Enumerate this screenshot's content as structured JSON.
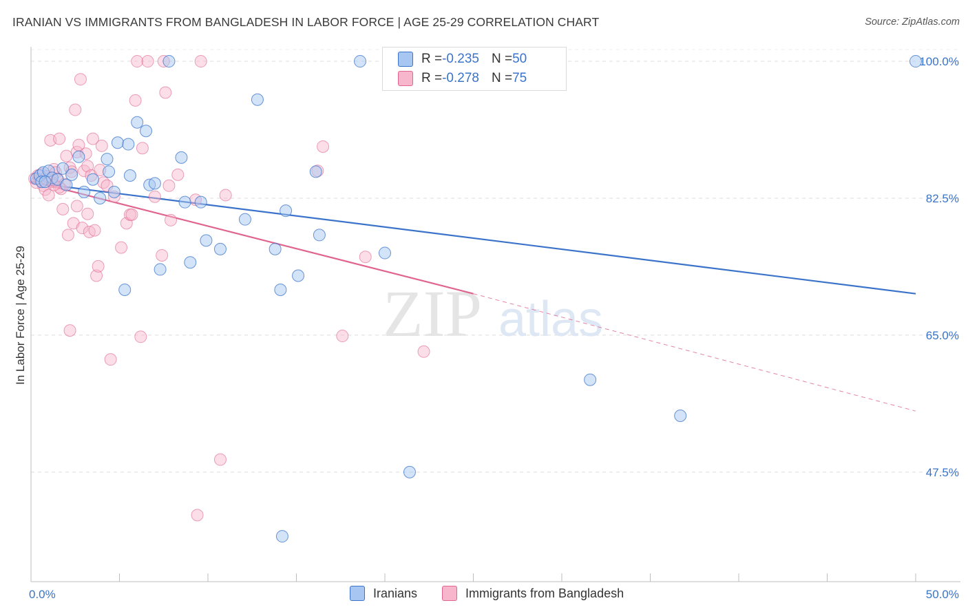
{
  "title": "IRANIAN VS IMMIGRANTS FROM BANGLADESH IN LABOR FORCE | AGE 25-29 CORRELATION CHART",
  "source": "Source: ZipAtlas.com",
  "watermark": {
    "zip": "ZIP",
    "atlas": "atlas"
  },
  "legend": {
    "series1": {
      "r_label": "R = ",
      "r_value": "-0.235",
      "n_label": "N = ",
      "n_value": "50",
      "color": "#a7c7f2"
    },
    "series2": {
      "r_label": "R = ",
      "r_value": "-0.278",
      "n_label": "N = ",
      "n_value": "75",
      "color": "#f7b6cb"
    }
  },
  "bottom_legend": {
    "series1": "Iranians",
    "series2": "Immigrants from Bangladesh"
  },
  "chart_data": {
    "type": "scatter",
    "title": "IRANIAN VS IMMIGRANTS FROM BANGLADESH IN LABOR FORCE | AGE 25-29 CORRELATION CHART",
    "xlabel": "",
    "ylabel": "In Labor Force | Age 25-29",
    "xlim": [
      0,
      50
    ],
    "ylim": [
      33.5,
      101.5
    ],
    "x_tick_labels": [
      "0.0%",
      "50.0%"
    ],
    "y_ticks": [
      47.5,
      65.0,
      82.5,
      100.0
    ],
    "y_tick_labels": [
      "47.5%",
      "65.0%",
      "82.5%",
      "100.0%"
    ],
    "grid": true,
    "colors": {
      "iranians": "#3a73c9",
      "iranians_fill": "#a7c7f2",
      "bangladesh": "#e0648e",
      "bangladesh_fill": "#f7b6cb",
      "tick": "#3a73c9"
    },
    "series": [
      {
        "name": "Iranians",
        "r": -0.235,
        "n": 50,
        "trend": {
          "x": [
            0,
            50
          ],
          "y": [
            84.5,
            70.3
          ]
        },
        "points": [
          [
            0.3,
            85.0
          ],
          [
            0.5,
            85.4
          ],
          [
            0.7,
            85.8
          ],
          [
            0.6,
            84.6
          ],
          [
            1.0,
            86.0
          ],
          [
            1.2,
            85.1
          ],
          [
            1.5,
            84.9
          ],
          [
            1.8,
            86.3
          ],
          [
            2.0,
            84.2
          ],
          [
            2.3,
            85.5
          ],
          [
            2.7,
            87.8
          ],
          [
            3.0,
            83.3
          ],
          [
            3.5,
            84.9
          ],
          [
            3.9,
            82.5
          ],
          [
            4.3,
            87.5
          ],
          [
            4.4,
            85.9
          ],
          [
            4.7,
            83.3
          ],
          [
            4.9,
            89.6
          ],
          [
            5.3,
            70.8
          ],
          [
            5.5,
            89.4
          ],
          [
            5.6,
            85.4
          ],
          [
            6.0,
            92.2
          ],
          [
            6.5,
            91.1
          ],
          [
            6.7,
            84.2
          ],
          [
            7.0,
            84.4
          ],
          [
            7.3,
            73.4
          ],
          [
            7.8,
            100.0
          ],
          [
            8.5,
            87.7
          ],
          [
            8.7,
            82.0
          ],
          [
            9.0,
            74.3
          ],
          [
            9.6,
            82.0
          ],
          [
            9.9,
            77.1
          ],
          [
            10.7,
            76.0
          ],
          [
            12.1,
            79.8
          ],
          [
            12.8,
            95.1
          ],
          [
            13.8,
            76.0
          ],
          [
            14.1,
            70.8
          ],
          [
            14.2,
            39.3
          ],
          [
            14.4,
            80.9
          ],
          [
            15.1,
            72.6
          ],
          [
            16.1,
            85.9
          ],
          [
            16.3,
            77.8
          ],
          [
            18.6,
            100.0
          ],
          [
            20.0,
            75.5
          ],
          [
            21.4,
            47.5
          ],
          [
            25.6,
            100.0
          ],
          [
            31.6,
            59.3
          ],
          [
            36.7,
            54.7
          ],
          [
            50.0,
            100.0
          ],
          [
            0.8,
            84.6
          ]
        ]
      },
      {
        "name": "Immigrants from Bangladesh",
        "r": -0.278,
        "n": 75,
        "trend": {
          "x": [
            0,
            25
          ],
          "y": [
            84.7,
            70.3
          ]
        },
        "trend_dashed": {
          "x": [
            25,
            50
          ],
          "y": [
            70.3,
            55.3
          ]
        },
        "points": [
          [
            0.2,
            85.0
          ],
          [
            0.3,
            84.5
          ],
          [
            0.4,
            85.4
          ],
          [
            0.5,
            84.9
          ],
          [
            0.6,
            85.6
          ],
          [
            0.7,
            84.1
          ],
          [
            0.8,
            83.6
          ],
          [
            0.9,
            84.9
          ],
          [
            1.0,
            82.9
          ],
          [
            1.1,
            89.9
          ],
          [
            1.2,
            84.6
          ],
          [
            1.3,
            86.2
          ],
          [
            1.4,
            85.8
          ],
          [
            1.5,
            85.0
          ],
          [
            1.6,
            90.1
          ],
          [
            1.7,
            83.7
          ],
          [
            1.8,
            81.1
          ],
          [
            1.9,
            84.3
          ],
          [
            2.0,
            87.9
          ],
          [
            2.1,
            77.8
          ],
          [
            2.2,
            86.4
          ],
          [
            2.3,
            85.9
          ],
          [
            2.4,
            79.3
          ],
          [
            2.5,
            93.8
          ],
          [
            2.6,
            88.4
          ],
          [
            2.7,
            89.3
          ],
          [
            2.8,
            97.7
          ],
          [
            2.9,
            78.7
          ],
          [
            3.0,
            86.0
          ],
          [
            3.1,
            88.2
          ],
          [
            3.2,
            86.6
          ],
          [
            3.3,
            78.2
          ],
          [
            3.4,
            85.4
          ],
          [
            3.5,
            90.1
          ],
          [
            3.6,
            78.4
          ],
          [
            3.7,
            72.6
          ],
          [
            3.8,
            73.8
          ],
          [
            3.9,
            86.1
          ],
          [
            4.0,
            89.2
          ],
          [
            4.1,
            84.5
          ],
          [
            4.3,
            84.1
          ],
          [
            4.5,
            61.9
          ],
          [
            4.7,
            82.7
          ],
          [
            5.1,
            76.2
          ],
          [
            5.4,
            79.3
          ],
          [
            5.6,
            80.4
          ],
          [
            5.7,
            80.4
          ],
          [
            5.9,
            95.0
          ],
          [
            6.2,
            64.8
          ],
          [
            6.3,
            88.9
          ],
          [
            6.0,
            100.0
          ],
          [
            6.6,
            100.0
          ],
          [
            7.0,
            82.7
          ],
          [
            7.4,
            75.2
          ],
          [
            7.6,
            96.0
          ],
          [
            7.8,
            84.1
          ],
          [
            7.9,
            79.7
          ],
          [
            8.3,
            85.5
          ],
          [
            9.3,
            82.3
          ],
          [
            9.6,
            100.0
          ],
          [
            7.5,
            100.0
          ],
          [
            10.7,
            49.1
          ],
          [
            11.0,
            82.9
          ],
          [
            9.4,
            42.0
          ],
          [
            2.2,
            65.6
          ],
          [
            16.2,
            86.0
          ],
          [
            16.5,
            89.1
          ],
          [
            17.6,
            64.9
          ],
          [
            18.9,
            75.0
          ],
          [
            22.2,
            62.9
          ],
          [
            1.6,
            83.9
          ],
          [
            2.6,
            81.5
          ],
          [
            0.9,
            85.3
          ],
          [
            1.3,
            84.2
          ],
          [
            3.2,
            80.5
          ]
        ]
      }
    ]
  }
}
